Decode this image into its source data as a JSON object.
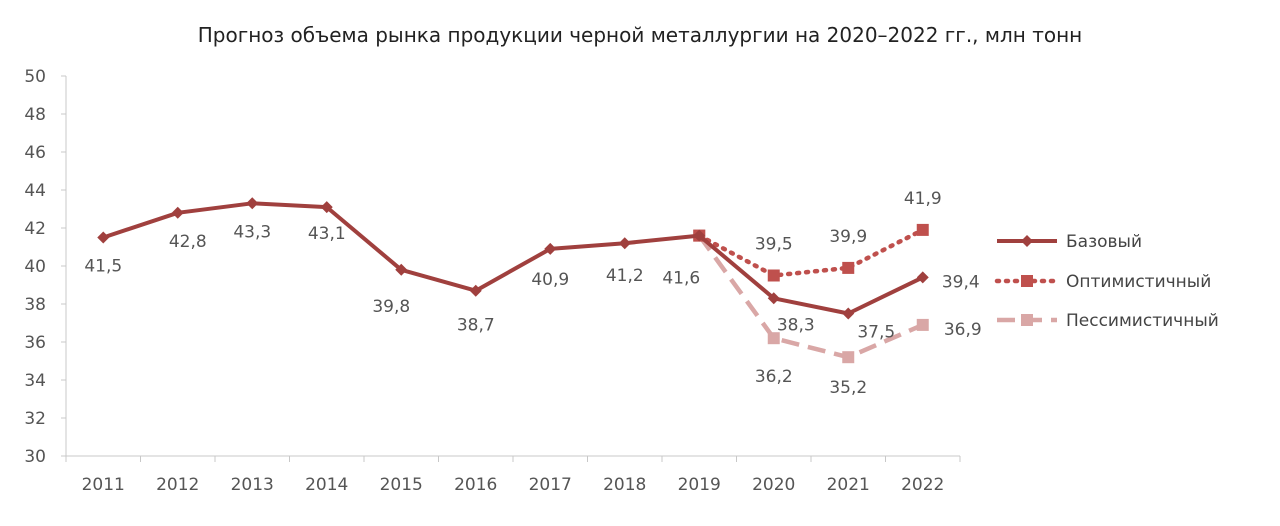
{
  "chart_data": {
    "type": "line",
    "title": "Прогноз объема рынка продукции черной металлургии  на 2020–2022  гг., млн тонн",
    "xlabel": "",
    "ylabel": "",
    "categories": [
      "2011",
      "2012",
      "2013",
      "2014",
      "2015",
      "2016",
      "2017",
      "2018",
      "2019",
      "2020",
      "2021",
      "2022"
    ],
    "ylim": [
      30,
      50
    ],
    "yticks": [
      30,
      32,
      34,
      36,
      38,
      40,
      42,
      44,
      46,
      48,
      50
    ],
    "grid": false,
    "legend_position": "right",
    "series": [
      {
        "name": "Базовый",
        "color": "#A0403E",
        "style": "solid",
        "marker": "diamond",
        "values": [
          41.5,
          42.8,
          43.3,
          43.1,
          39.8,
          38.7,
          40.9,
          41.2,
          41.6,
          38.3,
          37.5,
          39.4
        ],
        "labels": [
          "41,5",
          "42,8",
          "43,3",
          "43,1",
          "39,8",
          "38,7",
          "40,9",
          "41,2",
          "41,6",
          "38,3",
          "37,5",
          "39,4"
        ]
      },
      {
        "name": "Оптимистичный",
        "color": "#BF504D",
        "style": "dotted",
        "marker": "square",
        "values": [
          null,
          null,
          null,
          null,
          null,
          null,
          null,
          null,
          41.6,
          39.5,
          39.9,
          41.9
        ],
        "labels": [
          null,
          null,
          null,
          null,
          null,
          null,
          null,
          null,
          null,
          "39,5",
          "39,9",
          "41,9"
        ]
      },
      {
        "name": "Пессимистичный",
        "color": "#D9A7A6",
        "style": "dashed",
        "marker": "square",
        "values": [
          null,
          null,
          null,
          null,
          null,
          null,
          null,
          null,
          41.6,
          36.2,
          35.2,
          36.9
        ],
        "labels": [
          null,
          null,
          null,
          null,
          null,
          null,
          null,
          null,
          null,
          "36,2",
          "35,2",
          "36,9"
        ]
      }
    ]
  }
}
